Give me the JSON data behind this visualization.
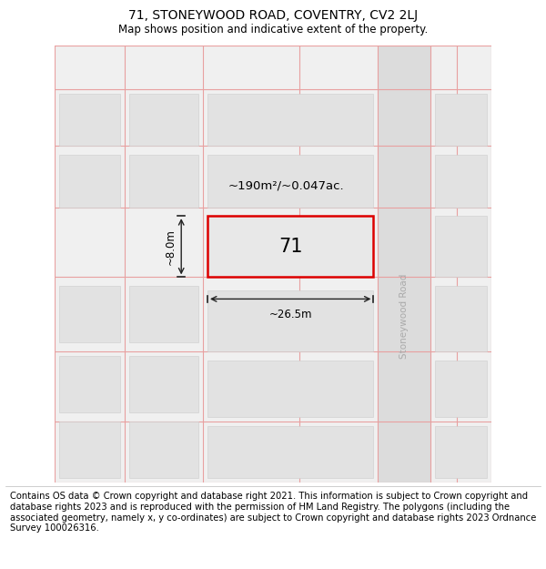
{
  "title": "71, STONEYWOOD ROAD, COVENTRY, CV2 2LJ",
  "subtitle": "Map shows position and indicative extent of the property.",
  "footer": "Contains OS data © Crown copyright and database right 2021. This information is subject to Crown copyright and database rights 2023 and is reproduced with the permission of HM Land Registry. The polygons (including the associated geometry, namely x, y co-ordinates) are subject to Crown copyright and database rights 2023 Ordnance Survey 100026316.",
  "road_label": "Stoneywood Road",
  "area_label": "~190m²/~0.047ac.",
  "width_label": "~26.5m",
  "height_label": "~8.0m",
  "number_label": "71",
  "title_fontsize": 10,
  "subtitle_fontsize": 8.5,
  "footer_fontsize": 7.2,
  "map_bg": "#f0f0f0",
  "road_bg": "#e2e2e2",
  "plot_face": "#e2e2e2",
  "highlight_face": "#e8e8e8",
  "highlight_edge": "#dd0000",
  "grid_line_color": "#e8a0a0",
  "dim_line_color": "#222222",
  "road_text_color": "#aaaaaa",
  "white": "#ffffff"
}
